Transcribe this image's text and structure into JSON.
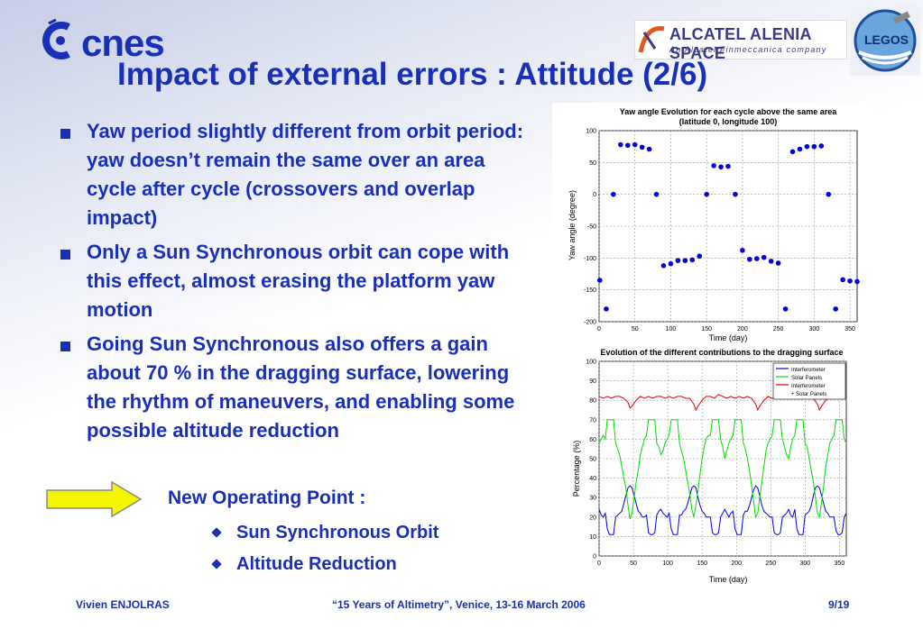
{
  "header": {
    "title": "Impact of external errors : Attitude (2/6)",
    "logos": {
      "cnes": {
        "text": "cnes",
        "icon": "cnes-logo"
      },
      "alcatel": {
        "main": "ALCATEL ALENIA SPACE",
        "sub": "An Alcatel/Finmeccanica company",
        "icon": "alcatel-alenia-space-logo"
      },
      "legos": {
        "text": "LEGOS",
        "icon": "legos-logo"
      }
    }
  },
  "bullets": [
    "Yaw period slightly different from orbit period: yaw doesn’t remain the same over an area cycle after cycle (crossovers and overlap impact)",
    "Only a Sun Synchronous orbit can cope with this effect, almost erasing the platform yaw motion",
    "Going Sun Synchronous also offers a gain about 70 % in the dragging surface, lowering the rhythm of maneuvers, and enabling some possible altitude reduction"
  ],
  "new_operating_point": {
    "label": "New Operating Point :",
    "items": [
      "Sun Synchronous Orbit",
      "Altitude Reduction"
    ],
    "arrow_color": "#f5f500"
  },
  "footer": {
    "author": "Vivien ENJOLRAS",
    "event": "“15 Years of Altimetry”, Venice, 13-16 March 2006",
    "page": "9/19"
  },
  "colors": {
    "text": "#1a2fb8",
    "points": "#0000dd"
  },
  "chart_data": [
    {
      "type": "scatter",
      "title": "Yaw angle Evolution for each cycle above the same area",
      "subtitle": "(latitude  0, longitude 100)",
      "xlabel": "Time (day)",
      "ylabel": "Yaw angle (degree)",
      "xlim": [
        0,
        360
      ],
      "ylim": [
        -200,
        100
      ],
      "xticks": [
        0,
        50,
        100,
        150,
        200,
        250,
        300,
        350
      ],
      "yticks": [
        100,
        50,
        0,
        -50,
        -100,
        -150,
        -200
      ],
      "grid": true,
      "series": [
        {
          "color": "#0000dd",
          "x": [
            1,
            10,
            20,
            30,
            40,
            50,
            60,
            70,
            80,
            90,
            100,
            110,
            120,
            130,
            140,
            150,
            160,
            170,
            180,
            190,
            200,
            210,
            220,
            230,
            240,
            250,
            260,
            270,
            280,
            290,
            300,
            310,
            320,
            330,
            340,
            350,
            360
          ],
          "y": [
            -135,
            -180,
            0,
            78,
            77,
            78,
            74,
            71,
            0,
            -112,
            -109,
            -104,
            -104,
            -103,
            -97,
            0,
            45,
            43,
            44,
            0,
            -88,
            -102,
            -101,
            -99,
            -105,
            -108,
            -180,
            67,
            71,
            75,
            75,
            76,
            0,
            -180,
            -134,
            -136,
            -137
          ]
        }
      ]
    },
    {
      "type": "line",
      "title": "Evolution of the different contributions to the dragging surface",
      "xlabel": "Time (day)",
      "ylabel": "Percentage (%)",
      "xlim": [
        0,
        360
      ],
      "ylim": [
        0,
        100
      ],
      "xticks": [
        0,
        50,
        100,
        150,
        200,
        250,
        300,
        350
      ],
      "yticks": [
        100,
        90,
        80,
        70,
        60,
        50,
        40,
        30,
        20,
        10,
        0
      ],
      "grid": true,
      "legend": {
        "placement": "top-right",
        "entries": [
          "Interferometer",
          "Solar Panels",
          "Interferometer",
          "+ Solar Panels"
        ]
      },
      "series": [
        {
          "name": "Interferometer",
          "color": "#0000ee",
          "x": [
            0,
            3,
            6,
            9,
            12,
            15,
            18,
            21,
            24,
            27,
            30,
            33,
            36,
            39,
            42,
            45,
            48,
            51,
            54,
            57,
            60,
            63,
            66,
            69,
            72,
            75,
            78,
            81,
            84,
            87,
            90,
            93,
            96,
            99,
            102,
            105,
            108,
            111,
            114,
            117,
            120,
            123,
            126,
            129,
            132,
            135,
            138,
            141,
            144,
            147,
            150,
            153,
            156,
            159,
            162,
            165,
            168,
            171,
            174,
            177,
            180,
            183,
            186,
            189,
            192,
            195,
            198,
            201,
            204,
            207,
            210,
            213,
            216,
            219,
            222,
            225,
            228,
            231,
            234,
            237,
            240,
            243,
            246,
            249,
            252,
            255,
            258,
            261,
            264,
            267,
            270,
            273,
            276,
            279,
            282,
            285,
            288,
            291,
            294,
            297,
            300,
            303,
            306,
            309,
            312,
            315,
            318,
            321,
            324,
            327,
            330,
            333,
            336,
            339,
            342,
            345,
            348,
            351,
            354,
            357,
            360
          ],
          "y": [
            24,
            21,
            20,
            22,
            14,
            11,
            11,
            11,
            20,
            21,
            22,
            23,
            27,
            31,
            35,
            36,
            35,
            31,
            27,
            23,
            22,
            20,
            20,
            21,
            12,
            11,
            11,
            12,
            21,
            23,
            24,
            22,
            21,
            20,
            22,
            14,
            11,
            11,
            11,
            21,
            21,
            23,
            24,
            27,
            31,
            35,
            36,
            35,
            30,
            26,
            23,
            22,
            20,
            20,
            20,
            12,
            11,
            11,
            12,
            20,
            22,
            24,
            22,
            20,
            22,
            23,
            14,
            11,
            11,
            11,
            21,
            23,
            23,
            26,
            30,
            34,
            36,
            35,
            31,
            26,
            23,
            22,
            21,
            20,
            20,
            12,
            11,
            11,
            12,
            20,
            21,
            22,
            24,
            21,
            20,
            24,
            14,
            11,
            11,
            11,
            21,
            22,
            23,
            26,
            31,
            35,
            36,
            35,
            31,
            27,
            23,
            22,
            20,
            20,
            20,
            13,
            11,
            11,
            12,
            20,
            22
          ]
        },
        {
          "name": "Solar Panels",
          "color": "#00dd00",
          "x": [
            0,
            3,
            6,
            9,
            12,
            15,
            18,
            21,
            24,
            27,
            30,
            33,
            36,
            39,
            42,
            45,
            48,
            51,
            54,
            57,
            60,
            63,
            66,
            69,
            72,
            75,
            78,
            81,
            84,
            87,
            90,
            93,
            96,
            99,
            102,
            105,
            108,
            111,
            114,
            117,
            120,
            123,
            126,
            129,
            132,
            135,
            138,
            141,
            144,
            147,
            150,
            153,
            156,
            159,
            162,
            165,
            168,
            171,
            174,
            177,
            180,
            183,
            186,
            189,
            192,
            195,
            198,
            201,
            204,
            207,
            210,
            213,
            216,
            219,
            222,
            225,
            228,
            231,
            234,
            237,
            240,
            243,
            246,
            249,
            252,
            255,
            258,
            261,
            264,
            267,
            270,
            273,
            276,
            279,
            282,
            285,
            288,
            291,
            294,
            297,
            300,
            303,
            306,
            309,
            312,
            315,
            318,
            321,
            324,
            327,
            330,
            333,
            336,
            339,
            342,
            345,
            348,
            351,
            354,
            357,
            360
          ],
          "y": [
            58,
            60,
            62,
            60,
            70,
            70,
            70,
            70,
            58,
            55,
            52,
            46,
            40,
            35,
            26,
            19,
            22,
            30,
            38,
            44,
            52,
            56,
            60,
            62,
            70,
            70,
            70,
            70,
            58,
            56,
            52,
            54,
            58,
            60,
            62,
            70,
            70,
            70,
            70,
            58,
            54,
            50,
            44,
            38,
            32,
            24,
            20,
            26,
            34,
            42,
            50,
            56,
            60,
            62,
            62,
            70,
            70,
            70,
            70,
            60,
            56,
            50,
            54,
            58,
            60,
            62,
            70,
            70,
            70,
            70,
            58,
            55,
            50,
            44,
            36,
            28,
            20,
            22,
            30,
            38,
            46,
            54,
            58,
            60,
            62,
            70,
            70,
            70,
            70,
            60,
            56,
            52,
            50,
            56,
            60,
            62,
            70,
            70,
            70,
            70,
            58,
            56,
            50,
            44,
            38,
            30,
            22,
            20,
            28,
            36,
            46,
            52,
            58,
            60,
            62,
            70,
            70,
            70,
            70,
            60,
            58
          ]
        },
        {
          "name": "Interferometer + Solar Panels",
          "color": "#ee0000",
          "x": [
            0,
            6,
            12,
            18,
            24,
            30,
            36,
            42,
            45,
            48,
            54,
            60,
            66,
            72,
            78,
            84,
            90,
            96,
            102,
            108,
            114,
            120,
            126,
            132,
            138,
            141,
            144,
            150,
            156,
            162,
            168,
            174,
            180,
            186,
            192,
            198,
            204,
            210,
            216,
            222,
            228,
            231,
            234,
            240,
            246,
            252,
            258,
            264,
            270,
            276,
            282,
            288,
            294,
            300,
            306,
            312,
            318,
            321,
            324,
            330,
            336,
            342,
            348,
            354,
            360
          ],
          "y": [
            82,
            81,
            82,
            81,
            82,
            82,
            81,
            79,
            76,
            77,
            80,
            82,
            81,
            82,
            81,
            82,
            82,
            81,
            82,
            81,
            82,
            82,
            81,
            81,
            78,
            75,
            77,
            80,
            82,
            82,
            81,
            83,
            82,
            81,
            82,
            81,
            82,
            81,
            82,
            81,
            78,
            75,
            77,
            80,
            82,
            81,
            82,
            82,
            81,
            82,
            81,
            82,
            82,
            81,
            82,
            81,
            78,
            75,
            77,
            80,
            82,
            81,
            82,
            81,
            82
          ]
        }
      ]
    }
  ]
}
